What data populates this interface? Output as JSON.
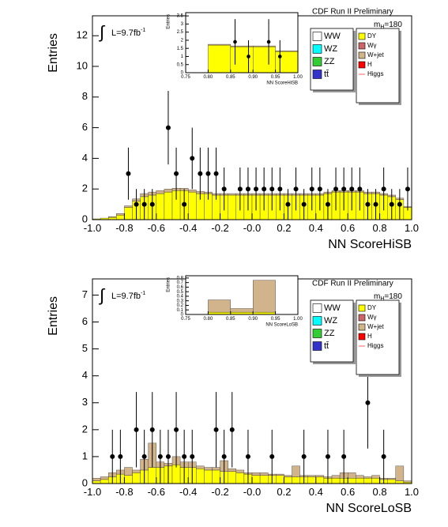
{
  "chart_data": [
    {
      "type": "histogram",
      "header": "CDF Run II Preliminary",
      "mass": {
        "m": "m",
        "sub": "H",
        "rest": "=180"
      },
      "lumi": {
        "text": "L=9.7fb",
        "sup": "-1",
        "integral": "∫"
      },
      "x_label": "NN ScoreHiSB",
      "y_label": "Entries",
      "bins": [
        -1.0,
        -0.95,
        -0.9,
        -0.85,
        -0.8,
        -0.75,
        -0.7,
        -0.65,
        -0.6,
        -0.55,
        -0.5,
        -0.45,
        -0.4,
        -0.35,
        -0.3,
        -0.25,
        -0.2,
        -0.15,
        -0.1,
        -0.05,
        0.0,
        0.05,
        0.1,
        0.15,
        0.2,
        0.25,
        0.3,
        0.35,
        0.4,
        0.45,
        0.5,
        0.55,
        0.6,
        0.65,
        0.7,
        0.75,
        0.8,
        0.85,
        0.9,
        0.95,
        1.0
      ],
      "series": [
        {
          "color": "#ffff00",
          "values": [
            0.05,
            0.1,
            0.15,
            0.3,
            0.8,
            1.2,
            1.5,
            1.6,
            1.7,
            1.8,
            1.9,
            1.9,
            1.8,
            1.7,
            1.7,
            1.6,
            1.6,
            1.6,
            1.6,
            1.6,
            1.6,
            1.6,
            1.6,
            1.6,
            1.6,
            1.6,
            1.6,
            1.6,
            1.6,
            1.7,
            1.8,
            1.8,
            1.8,
            1.8,
            1.7,
            1.7,
            1.6,
            1.5,
            1.3,
            0.8
          ]
        },
        {
          "color": "#d2b48c",
          "values": [
            0,
            0,
            0.05,
            0.1,
            0.1,
            0.15,
            0.2,
            0.2,
            0.2,
            0.2,
            0.15,
            0.15,
            0.15,
            0.15,
            0.1,
            0.1,
            0.1,
            0.1,
            0.1,
            0.1,
            0.1,
            0.1,
            0.1,
            0.1,
            0.1,
            0.1,
            0.1,
            0.1,
            0.1,
            0.1,
            0.1,
            0.1,
            0.1,
            0.1,
            0.1,
            0.1,
            0.1,
            0.1,
            0.1,
            0.05
          ]
        }
      ],
      "data": {
        "x": [
          -0.775,
          -0.725,
          -0.675,
          -0.625,
          -0.525,
          -0.475,
          -0.425,
          -0.375,
          -0.325,
          -0.275,
          -0.225,
          -0.175,
          -0.075,
          -0.025,
          0.025,
          0.075,
          0.125,
          0.175,
          0.225,
          0.275,
          0.325,
          0.375,
          0.425,
          0.475,
          0.525,
          0.575,
          0.625,
          0.675,
          0.725,
          0.775,
          0.825,
          0.875,
          0.925,
          0.975
        ],
        "values": [
          3,
          1,
          1,
          1,
          6,
          3,
          1,
          4,
          3,
          3,
          3,
          2,
          2,
          2,
          2,
          2,
          2,
          2,
          1,
          2,
          1,
          2,
          2,
          1,
          2,
          2,
          2,
          2,
          1,
          1,
          2,
          1,
          1,
          2
        ],
        "errors": [
          1.7,
          1.0,
          1.0,
          1.0,
          2.4,
          1.7,
          1.0,
          2.0,
          1.7,
          1.7,
          1.7,
          1.4,
          1.4,
          1.4,
          1.4,
          1.4,
          1.4,
          1.4,
          1.0,
          1.4,
          1.0,
          1.4,
          1.4,
          1.0,
          1.4,
          1.4,
          1.4,
          1.4,
          1.0,
          1.0,
          1.4,
          1.0,
          1.0,
          1.4
        ]
      },
      "xlim": [
        -1.0,
        1.0
      ],
      "ylim": [
        0,
        13.3
      ],
      "xticks": [
        {
          "value": -1.0,
          "label": "-1.0"
        },
        -0.8,
        -0.6,
        -0.4,
        -0.2,
        {
          "value": 0,
          "label": "-0.0"
        },
        0.2,
        0.4,
        0.6,
        0.8,
        {
          "value": 1.0,
          "label": "1.0"
        }
      ],
      "yticks": [
        0,
        2,
        4,
        6,
        8,
        10,
        12
      ],
      "legend": [
        {
          "name": "WW",
          "color": "#ffffff"
        },
        {
          "name": "WZ",
          "color": "#00ffff"
        },
        {
          "name": "ZZ",
          "color": "#33cc33"
        },
        {
          "name": "tt̄",
          "color": "#3333cc"
        },
        {
          "name": "DY",
          "color": "#ffff00"
        },
        {
          "name": "Wγ",
          "color": "#cc6666"
        },
        {
          "name": "W+jet",
          "color": "#d2b48c"
        },
        {
          "name": "H",
          "color": "#ff0000"
        },
        {
          "name": "Higgs",
          "color": "#ff6666",
          "style": "line"
        }
      ],
      "inset": {
        "x_label": "NN ScoreHiSB",
        "y_label": "Entries",
        "bins": [
          0.75,
          0.8,
          0.85,
          0.9,
          0.95,
          1.0
        ],
        "series": [
          {
            "color": "#ffff00",
            "values": [
              0,
              1.7,
              1.6,
              1.6,
              1.3
            ]
          },
          {
            "color": "#d2b48c",
            "values": [
              0,
              0.05,
              0.05,
              0.05,
              0.05
            ]
          }
        ],
        "data": {
          "x": [
            0.86,
            0.89,
            0.935,
            0.96
          ],
          "values": [
            1.9,
            1.0,
            1.9,
            1.0
          ],
          "errors": [
            1.4,
            1.0,
            1.4,
            1.0
          ]
        },
        "xlim": [
          0.75,
          1.0
        ],
        "ylim": [
          0,
          3.7
        ],
        "xticks": [
          0.75,
          {
            "value": 0.8,
            "label": "0.80"
          },
          0.85,
          {
            "value": 0.9,
            "label": "0.90"
          },
          0.95,
          {
            "value": 1.0,
            "label": "1.00"
          }
        ],
        "yticks": [
          0,
          0.5,
          1,
          1.5,
          2,
          2.5,
          3,
          3.5
        ]
      }
    },
    {
      "type": "histogram",
      "header": "CDF Run II Preliminary",
      "mass": {
        "m": "m",
        "sub": "H",
        "rest": "=180"
      },
      "lumi": {
        "text": "L=9.7fb",
        "sup": "-1",
        "integral": "∫"
      },
      "x_label": "NN ScoreLoSB",
      "y_label": "Entries",
      "bins": [
        -1.0,
        -0.95,
        -0.9,
        -0.85,
        -0.8,
        -0.75,
        -0.7,
        -0.65,
        -0.6,
        -0.55,
        -0.5,
        -0.45,
        -0.4,
        -0.35,
        -0.3,
        -0.25,
        -0.2,
        -0.15,
        -0.1,
        -0.05,
        0.0,
        0.05,
        0.1,
        0.15,
        0.2,
        0.25,
        0.3,
        0.35,
        0.4,
        0.45,
        0.5,
        0.55,
        0.6,
        0.65,
        0.7,
        0.75,
        0.8,
        0.85,
        0.9,
        0.95,
        1.0
      ],
      "series": [
        {
          "color": "#ffff00",
          "values": [
            0.1,
            0.15,
            0.25,
            0.35,
            0.3,
            0.4,
            0.5,
            0.6,
            0.6,
            0.65,
            0.7,
            0.6,
            0.6,
            0.55,
            0.5,
            0.5,
            0.45,
            0.45,
            0.4,
            0.35,
            0.3,
            0.3,
            0.3,
            0.3,
            0.25,
            0.25,
            0.25,
            0.25,
            0.25,
            0.2,
            0.2,
            0.2,
            0.2,
            0.2,
            0.2,
            0.2,
            0.15,
            0.15,
            0.1,
            0.05
          ]
        },
        {
          "color": "#d2b48c",
          "values": [
            0.1,
            0.1,
            0.15,
            0.15,
            0.3,
            0.1,
            0.4,
            0.9,
            0.2,
            0.1,
            0.3,
            0.2,
            0.2,
            0.1,
            0.1,
            0.1,
            0.4,
            0.1,
            0.1,
            0.05,
            0.1,
            0.1,
            0.05,
            0.05,
            0.05,
            0.4,
            0.05,
            0.05,
            0.05,
            0.05,
            0.1,
            0.2,
            0.2,
            0.1,
            0.05,
            0.1,
            0.05,
            0.05,
            0.55,
            0.05
          ]
        }
      ],
      "data": {
        "x": [
          -0.875,
          -0.825,
          -0.725,
          -0.675,
          -0.625,
          -0.575,
          -0.525,
          -0.475,
          -0.425,
          -0.375,
          -0.225,
          -0.175,
          -0.125,
          -0.025,
          0.125,
          0.325,
          0.475,
          0.575,
          0.725,
          0.825
        ],
        "values": [
          1,
          1,
          2,
          1,
          2,
          1,
          1,
          2,
          1,
          1,
          2,
          1,
          2,
          1,
          1,
          1,
          1,
          1,
          3,
          1
        ],
        "errors": [
          1.0,
          1.0,
          1.4,
          1.0,
          1.4,
          1.0,
          1.0,
          1.4,
          1.0,
          1.0,
          1.4,
          1.0,
          1.4,
          1.0,
          1.0,
          1.0,
          1.0,
          1.0,
          1.7,
          1.0
        ]
      },
      "xlim": [
        -1.0,
        1.0
      ],
      "ylim": [
        0,
        7.6
      ],
      "xticks": [
        {
          "value": -1.0,
          "label": "-1.0"
        },
        -0.8,
        -0.6,
        -0.4,
        -0.2,
        {
          "value": 0,
          "label": "-0.0"
        },
        0.2,
        0.4,
        0.6,
        0.8,
        {
          "value": 1.0,
          "label": "1.0"
        }
      ],
      "yticks": [
        0,
        1,
        2,
        3,
        4,
        5,
        6,
        7
      ],
      "legend": [
        {
          "name": "WW",
          "color": "#ffffff"
        },
        {
          "name": "WZ",
          "color": "#00ffff"
        },
        {
          "name": "ZZ",
          "color": "#33cc33"
        },
        {
          "name": "tt̄",
          "color": "#3333cc"
        },
        {
          "name": "DY",
          "color": "#ffff00"
        },
        {
          "name": "Wγ",
          "color": "#cc6666"
        },
        {
          "name": "W+jet",
          "color": "#d2b48c"
        },
        {
          "name": "H",
          "color": "#ff0000"
        },
        {
          "name": "Higgs",
          "color": "#ff6666",
          "style": "line"
        }
      ],
      "inset": {
        "x_label": "NN ScoreLoSB",
        "y_label": "Entries",
        "bins": [
          0.75,
          0.8,
          0.85,
          0.9,
          0.95,
          1.0
        ],
        "series": [
          {
            "color": "#ffff00",
            "values": [
              0,
              0.05,
              0.05,
              0.05,
              0
            ]
          },
          {
            "color": "#d2b48c",
            "values": [
              0,
              0.27,
              0.08,
              0.7,
              0
            ]
          }
        ],
        "xlim": [
          0.75,
          1.0
        ],
        "ylim": [
          0,
          0.85
        ],
        "xticks": [
          0.75,
          {
            "value": 0.8,
            "label": "0.80"
          },
          0.85,
          {
            "value": 0.9,
            "label": "0.90"
          },
          0.95,
          {
            "value": 1.0,
            "label": "1.00"
          }
        ],
        "yticks": [
          0,
          0.1,
          0.2,
          0.3,
          0.4,
          0.5,
          0.6,
          0.7,
          0.8
        ]
      }
    }
  ]
}
